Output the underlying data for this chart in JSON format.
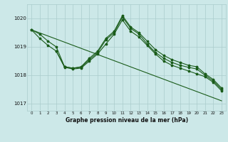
{
  "title": "Graphe pression niveau de la mer (hPa)",
  "bg_color": "#cce8e8",
  "grid_color": "#aacccc",
  "line_color": "#1a5c1a",
  "xlim": [
    -0.5,
    23.5
  ],
  "ylim": [
    1016.75,
    1020.5
  ],
  "yticks": [
    1017,
    1018,
    1019,
    1020
  ],
  "xticks": [
    0,
    1,
    2,
    3,
    4,
    5,
    6,
    7,
    8,
    9,
    10,
    11,
    12,
    13,
    14,
    15,
    16,
    17,
    18,
    19,
    20,
    21,
    22,
    23
  ],
  "series1_x": [
    0,
    23
  ],
  "series1_y": [
    1019.6,
    1017.1
  ],
  "series2_x": [
    0,
    1,
    2,
    3,
    4,
    5,
    6,
    7,
    8,
    9,
    10,
    11,
    12,
    13,
    14,
    15,
    16,
    17,
    18,
    19,
    20,
    21,
    22,
    23
  ],
  "series2_y": [
    1019.6,
    1019.45,
    1019.2,
    1019.0,
    1018.3,
    1018.25,
    1018.3,
    1018.6,
    1018.85,
    1019.3,
    1019.55,
    1020.1,
    1019.7,
    1019.5,
    1019.2,
    1018.9,
    1018.7,
    1018.55,
    1018.45,
    1018.35,
    1018.3,
    1018.05,
    1017.85,
    1017.55
  ],
  "series3_x": [
    0,
    1,
    2,
    3,
    4,
    5,
    6,
    7,
    8,
    9,
    10,
    11,
    12,
    13,
    14,
    15,
    16,
    17,
    18,
    19,
    20,
    21,
    22,
    23
  ],
  "series3_y": [
    1019.6,
    1019.3,
    1019.05,
    1018.85,
    1018.3,
    1018.25,
    1018.28,
    1018.55,
    1018.8,
    1019.25,
    1019.5,
    1020.05,
    1019.65,
    1019.45,
    1019.1,
    1018.8,
    1018.6,
    1018.45,
    1018.35,
    1018.28,
    1018.22,
    1018.0,
    1017.8,
    1017.5
  ],
  "series4_x": [
    3,
    4,
    5,
    6,
    7,
    8,
    9,
    10,
    11,
    12,
    13,
    14,
    15,
    16,
    17,
    18,
    19,
    20,
    21,
    22,
    23
  ],
  "series4_y": [
    1018.85,
    1018.28,
    1018.22,
    1018.25,
    1018.5,
    1018.75,
    1019.1,
    1019.45,
    1019.95,
    1019.55,
    1019.35,
    1019.05,
    1018.75,
    1018.5,
    1018.35,
    1018.25,
    1018.15,
    1018.05,
    1017.95,
    1017.75,
    1017.45
  ]
}
